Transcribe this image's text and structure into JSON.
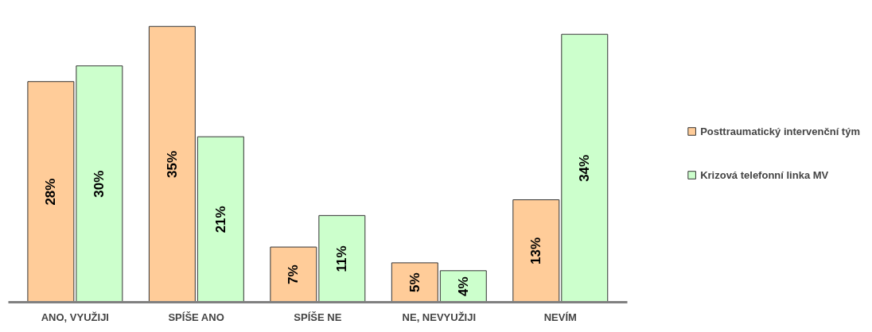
{
  "chart_data": {
    "type": "bar",
    "categories": [
      "ANO, VYUŽIJI",
      "SPÍŠE ANO",
      "SPÍŠE NE",
      "NE, NEVYUŽIJI",
      "NEVÍM"
    ],
    "series": [
      {
        "name": "Posttraumatický intervenční tým",
        "color": "#ffcc99",
        "values": [
          28,
          35,
          7,
          5,
          13
        ],
        "value_labels": [
          "28%",
          "35%",
          "7%",
          "5%",
          "13%"
        ]
      },
      {
        "name": "Krizová telefonní linka MV",
        "color": "#ccffcc",
        "values": [
          30,
          21,
          11,
          4,
          34
        ],
        "value_labels": [
          "30%",
          "21%",
          "11%",
          "4%",
          "34%"
        ]
      }
    ],
    "legend": "right",
    "grid": false
  }
}
